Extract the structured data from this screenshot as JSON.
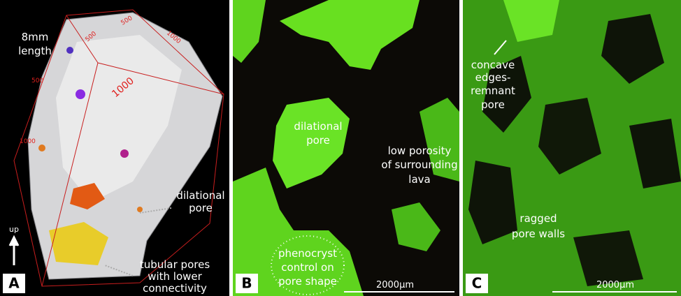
{
  "panel_a": {
    "letter": "A",
    "length_label": [
      "8mm",
      "length"
    ],
    "scale_labels": [
      "500",
      "1000",
      "500",
      "1000",
      "500",
      "1000"
    ],
    "up_label": "up",
    "pore_label": [
      "dilational",
      "pore"
    ],
    "tubular_label": [
      "tubular pores",
      "with lower",
      "connectivity"
    ]
  },
  "panel_b": {
    "letter": "B",
    "pore_label": [
      "dilational",
      "pore"
    ],
    "lava_label": [
      "low porosity",
      "of surrounding",
      "lava"
    ],
    "phenocryst_label": [
      "phenocryst",
      "control on",
      "pore shape"
    ],
    "scale_bar": "2000μm"
  },
  "panel_c": {
    "letter": "C",
    "concave_label": [
      "concave",
      "edges-",
      "remnant",
      "pore"
    ],
    "walls_label": [
      "ragged",
      "pore walls"
    ],
    "scale_bar": "2000μm"
  }
}
